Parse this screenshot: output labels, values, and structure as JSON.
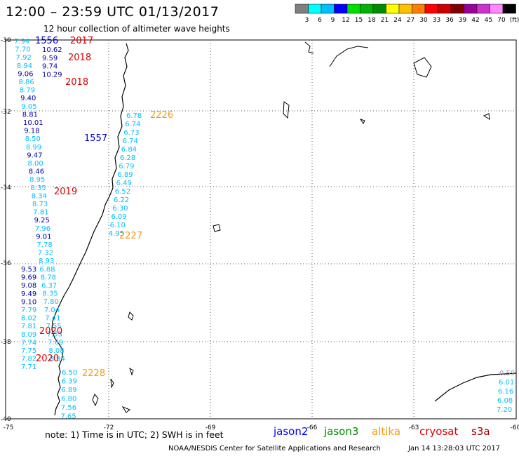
{
  "title": "12:00 – 23:59 UTC 01/13/2017",
  "subtitle": "12 hour collection of altimeter wave heights",
  "colorbar": {
    "colors": [
      "#7f7f7f",
      "#00ffff",
      "#00bfff",
      "#0000ff",
      "#00dd00",
      "#00b300",
      "#008c00",
      "#ffff00",
      "#ffc000",
      "#ff8000",
      "#ff0000",
      "#cc0000",
      "#800000",
      "#990099",
      "#cc33cc",
      "#ff88ff",
      "#000000"
    ],
    "labels": [
      "3",
      "6",
      "9",
      "12",
      "15",
      "18",
      "21",
      "24",
      "27",
      "30",
      "33",
      "36",
      "39",
      "42",
      "45",
      "70",
      "(ft)"
    ]
  },
  "axes": {
    "lat_labels": [
      "-30",
      "-32",
      "-34",
      "-36",
      "-38",
      "-40"
    ],
    "lon_labels": [
      "-75",
      "-72",
      "-69",
      "-66",
      "-63",
      "-60"
    ]
  },
  "pass_labels": [
    {
      "text": "1556",
      "color": "#0000cc"
    },
    {
      "text": "2017",
      "color": "#dd0000"
    },
    {
      "text": "2018",
      "color": "#dd0000"
    },
    {
      "text": "2018",
      "color": "#dd0000"
    },
    {
      "text": "1557",
      "color": "#0000cc"
    },
    {
      "text": "2226",
      "color": "#ff9900"
    },
    {
      "text": "2019",
      "color": "#dd0000"
    },
    {
      "text": "2227",
      "color": "#ff9900"
    },
    {
      "text": "2020",
      "color": "#dd0000"
    },
    {
      "text": "2020",
      "color": "#dd0000"
    },
    {
      "text": "2228",
      "color": "#ff9900"
    }
  ],
  "track_a": [
    "7.94",
    "7.70",
    "7.92",
    "8.94",
    "9.06",
    "8.86",
    "8.79",
    "9.40",
    "9.05",
    "8.81",
    "10.01",
    "9.18",
    "8.50",
    "8.99",
    "9.47",
    "8.00",
    "8.46",
    "8.95",
    "8.35",
    "8.34",
    "8.73",
    "7.81",
    "9.25",
    "7.96",
    "9.01",
    "7.78",
    "7.32",
    "8.93",
    "6.88",
    "8.78",
    "6.37",
    "8.35",
    "7.80",
    "7.04",
    "7.41",
    "7.55",
    "7.53",
    "7.69",
    "8.08",
    "8.94"
  ],
  "track_b": [
    "9.53",
    "9.69",
    "9.08",
    "9.49",
    "9.10",
    "7.79",
    "8.02",
    "7.81",
    "8.09",
    "7.74",
    "7.75",
    "7.82",
    "7.71"
  ],
  "track_c": [
    "10.62",
    "9.59",
    "9.74",
    "10.29"
  ],
  "track_d": [
    "6.78",
    "6.74",
    "6.73",
    "6.74",
    "6.84",
    "6.28",
    "6.79",
    "6.89",
    "6.49",
    "6.52",
    "6.22",
    "6.30",
    "6.09",
    "6.10",
    "4.95"
  ],
  "track_e": [
    "6.50",
    "6.39",
    "6.89",
    "6.80",
    "7.56",
    "7.65"
  ],
  "track_f": [
    "0.59",
    "6.01",
    "6.16",
    "6.08",
    "7.20"
  ],
  "note": "note: 1) Time is in UTC; 2) SWH is in feet",
  "satellites": [
    {
      "name": "jason2",
      "color": "#0000ff"
    },
    {
      "name": "jason3",
      "color": "#008c00"
    },
    {
      "name": "altika",
      "color": "#ff9900"
    },
    {
      "name": "cryosat",
      "color": "#dd0000"
    },
    {
      "name": "s3a",
      "color": "#990000"
    }
  ],
  "credit": "NOAA/NESDIS Center for Satellite Applications and Research",
  "credit_date": "Jan 14 13:28:03 UTC 2017"
}
